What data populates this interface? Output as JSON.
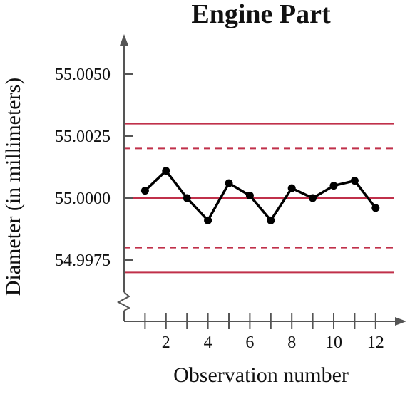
{
  "chart_data": {
    "type": "line",
    "title": "Engine Part",
    "xlabel": "Observation number",
    "ylabel": "Diameter (in millimeters)",
    "x_ticks": [
      1,
      2,
      3,
      4,
      5,
      6,
      7,
      8,
      9,
      10,
      11,
      12
    ],
    "x_tick_labels": [
      {
        "value": 2,
        "label": "2"
      },
      {
        "value": 4,
        "label": "4"
      },
      {
        "value": 6,
        "label": "6"
      },
      {
        "value": 8,
        "label": "8"
      },
      {
        "value": 10,
        "label": "10"
      },
      {
        "value": 12,
        "label": "12"
      }
    ],
    "y_ticks": [
      {
        "value": 55.005,
        "label": "55.0050"
      },
      {
        "value": 55.0025,
        "label": "55.0025"
      },
      {
        "value": 55.0,
        "label": "55.0000"
      },
      {
        "value": 54.9975,
        "label": "54.9975"
      }
    ],
    "xlim": [
      0,
      13
    ],
    "ylim": [
      54.9955,
      55.0062
    ],
    "y_axis_break": true,
    "grid": false,
    "series": [
      {
        "x": [
          1,
          2,
          3,
          4,
          5,
          6,
          7,
          8,
          9,
          10,
          11,
          12
        ],
        "y": [
          55.0003,
          55.0011,
          55.0,
          54.9991,
          55.0006,
          55.0001,
          54.9991,
          55.0004,
          55.0,
          55.0005,
          55.0007,
          54.9996
        ],
        "color": "#000000"
      }
    ],
    "reference_lines": [
      {
        "y": 55.003,
        "style": "solid",
        "color": "#c0304a"
      },
      {
        "y": 55.002,
        "style": "dashed",
        "color": "#c0304a"
      },
      {
        "y": 55.0,
        "style": "solid",
        "color": "#c0304a"
      },
      {
        "y": 54.998,
        "style": "dashed",
        "color": "#c0304a"
      },
      {
        "y": 54.997,
        "style": "solid",
        "color": "#c0304a"
      }
    ],
    "axis_color": "#555555"
  }
}
